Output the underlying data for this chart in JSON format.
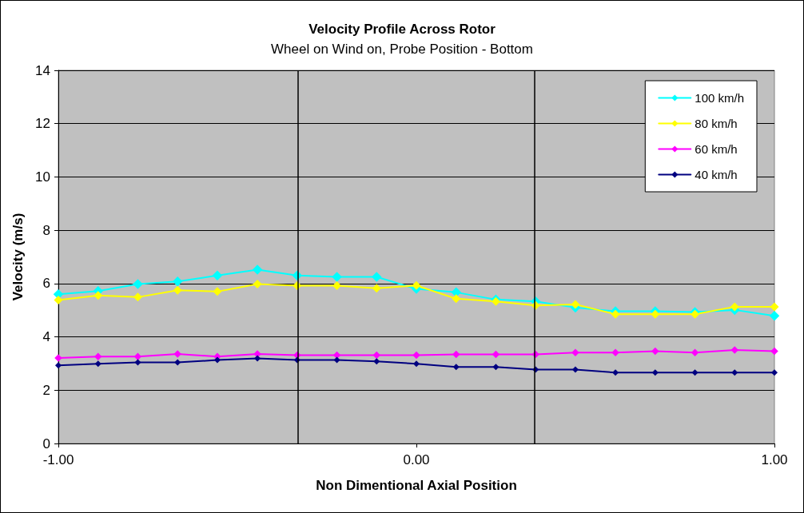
{
  "chart_data": {
    "type": "line",
    "title": "Velocity Profile Across Rotor",
    "subtitle": "Wheel on Wind on, Probe Position - Bottom",
    "xlabel": "Non Dimentional Axial Position",
    "ylabel": "Velocity (m/s)",
    "x": [
      -1,
      -0.889,
      -0.778,
      -0.667,
      -0.556,
      -0.444,
      -0.333,
      -0.222,
      -0.111,
      0,
      0.111,
      0.222,
      0.333,
      0.444,
      0.556,
      0.667,
      0.778,
      0.889,
      1
    ],
    "series": [
      {
        "name": "100 km/h",
        "color": "#00ffff",
        "values": [
          5.6,
          5.72,
          5.98,
          6.08,
          6.3,
          6.52,
          6.3,
          6.25,
          6.25,
          5.8,
          5.67,
          5.4,
          5.33,
          5.1,
          4.96,
          4.96,
          4.93,
          5.01,
          4.79
        ]
      },
      {
        "name": "80 km/h",
        "color": "#ffff00",
        "values": [
          5.38,
          5.55,
          5.49,
          5.75,
          5.7,
          5.98,
          5.92,
          5.92,
          5.82,
          5.93,
          5.43,
          5.33,
          5.18,
          5.22,
          4.85,
          4.85,
          4.85,
          5.13,
          5.13
        ]
      },
      {
        "name": "60 km/h",
        "color": "#ff00ff",
        "values": [
          3.21,
          3.26,
          3.26,
          3.36,
          3.26,
          3.36,
          3.31,
          3.31,
          3.31,
          3.31,
          3.34,
          3.34,
          3.34,
          3.41,
          3.41,
          3.46,
          3.41,
          3.51,
          3.46
        ]
      },
      {
        "name": "40 km/h",
        "color": "#000080",
        "values": [
          2.93,
          2.99,
          3.04,
          3.04,
          3.13,
          3.19,
          3.13,
          3.13,
          3.08,
          2.99,
          2.87,
          2.87,
          2.77,
          2.77,
          2.66,
          2.66,
          2.66,
          2.66,
          2.66
        ]
      }
    ],
    "xlim": [
      -1,
      1
    ],
    "xticks": [
      {
        "value": -1,
        "label": "-1.00"
      },
      {
        "value": 0,
        "label": "0.00"
      },
      {
        "value": 1,
        "label": "1.00"
      }
    ],
    "ylim": [
      0,
      14
    ],
    "yticks": [
      0,
      2,
      4,
      6,
      8,
      10,
      12,
      14
    ],
    "ref_lines": [
      {
        "axis": "x",
        "value": -0.333,
        "color": "#000000"
      },
      {
        "axis": "x",
        "value": 0.333,
        "color": "#000000"
      }
    ],
    "grid": "y",
    "legend": "top right",
    "marker": "diamond",
    "line_style": "solid"
  }
}
